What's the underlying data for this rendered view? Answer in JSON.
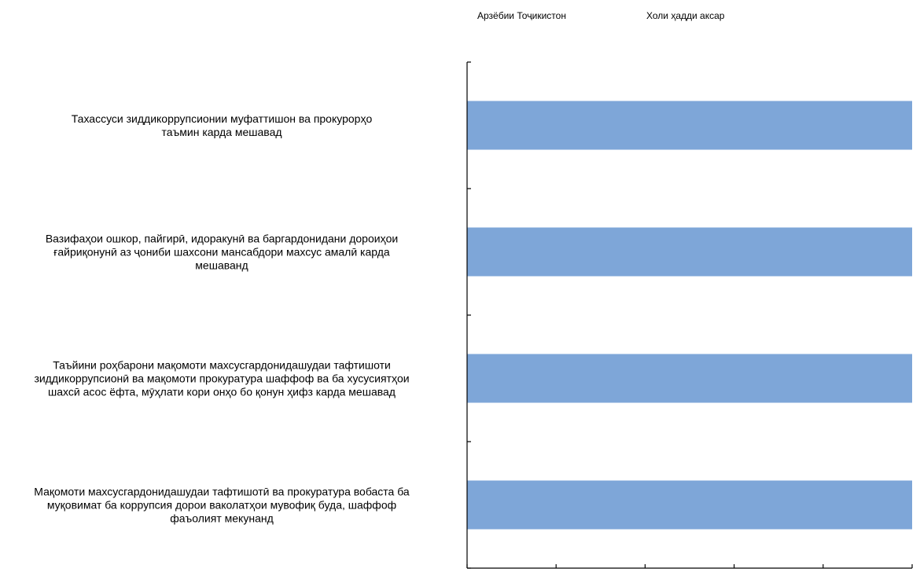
{
  "chart_data": {
    "type": "bar",
    "orientation": "horizontal",
    "title": "",
    "xlabel": "",
    "ylabel": "",
    "xlim": [
      0,
      25
    ],
    "x_ticks": [
      0,
      5,
      10,
      15,
      20,
      25
    ],
    "grid": false,
    "legend": {
      "placement": "top",
      "entries": [
        "Арзёбии Тоҷикистон",
        "Холи ҳадди аксар"
      ]
    },
    "categories": [
      [
        "Тахассуси зиддикоррупсионии муфаттишон ва прокурорҳо",
        "таъмин карда мешавад"
      ],
      [
        "Вазифаҳои ошкор, пайгирӣ, идоракунӣ ва баргардонидани дороиҳои",
        "ғайриқонунӣ аз ҷониби шахсони мансабдори махсус амалӣ карда",
        "мешаванд"
      ],
      [
        "Таъйини роҳбарони мақомоти махсусгардонидашудаи тафтишоти",
        "зиддикоррупсионӣ ва мақомоти прокуратура шаффоф ва ба хусусиятҳои",
        "шахсӣ асос ёфта, мӯҳлати кори онҳо бо қонун ҳифз карда мешавад"
      ],
      [
        "Мақомоти махсусгардонидашудаи тафтишотӣ ва прокуратура вобаста ба",
        "муқовимат ба коррупсия дорои ваколатҳои мувофиқ буда, шаффоф",
        "фаъолият мекунанд"
      ]
    ],
    "series": [
      {
        "name": "Арзёбии Тоҷикистон",
        "values": [
          0,
          0,
          0,
          0
        ],
        "color": "#7ea6d8"
      },
      {
        "name": "Холи ҳадди аксар",
        "values": [
          25,
          25,
          25,
          25
        ],
        "color": "#7ea6d8"
      }
    ]
  }
}
